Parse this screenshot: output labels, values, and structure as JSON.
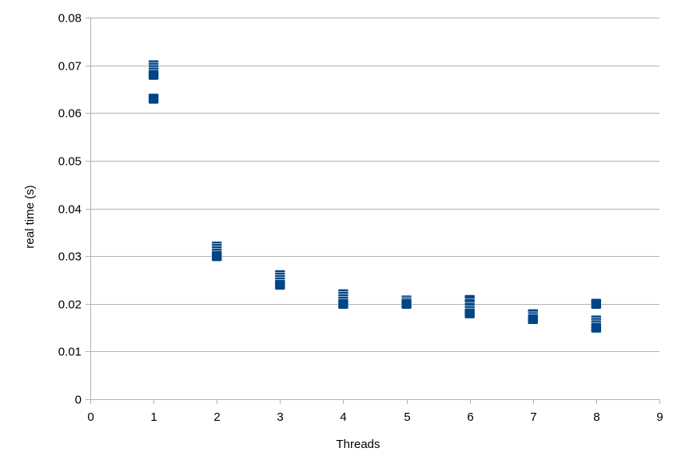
{
  "chart_data": {
    "type": "scatter",
    "title": "",
    "xlabel": "Threads",
    "ylabel": "real time (s)",
    "xlim": [
      0,
      9
    ],
    "ylim": [
      0,
      0.08
    ],
    "xticks": [
      0,
      1,
      2,
      3,
      4,
      5,
      6,
      7,
      8,
      9
    ],
    "yticks": [
      0,
      0.01,
      0.02,
      0.03,
      0.04,
      0.05,
      0.06,
      0.07,
      0.08
    ],
    "ytick_labels": [
      "0",
      "0.01",
      "0.02",
      "0.03",
      "0.04",
      "0.05",
      "0.06",
      "0.07",
      "0.08"
    ],
    "xtick_labels": [
      "0",
      "1",
      "2",
      "3",
      "4",
      "5",
      "6",
      "7",
      "8",
      "9"
    ],
    "grid": "horizontal",
    "legend": "none",
    "marker": "square",
    "color": "#004586",
    "series": [
      {
        "name": "real time",
        "points": [
          {
            "x": 1,
            "y": 0.07
          },
          {
            "x": 1,
            "y": 0.0695
          },
          {
            "x": 1,
            "y": 0.069
          },
          {
            "x": 1,
            "y": 0.0685
          },
          {
            "x": 1,
            "y": 0.068
          },
          {
            "x": 1,
            "y": 0.063
          },
          {
            "x": 2,
            "y": 0.032
          },
          {
            "x": 2,
            "y": 0.0315
          },
          {
            "x": 2,
            "y": 0.031
          },
          {
            "x": 2,
            "y": 0.0305
          },
          {
            "x": 2,
            "y": 0.03
          },
          {
            "x": 3,
            "y": 0.026
          },
          {
            "x": 3,
            "y": 0.0255
          },
          {
            "x": 3,
            "y": 0.025
          },
          {
            "x": 3,
            "y": 0.0245
          },
          {
            "x": 3,
            "y": 0.024
          },
          {
            "x": 4,
            "y": 0.022
          },
          {
            "x": 4,
            "y": 0.0215
          },
          {
            "x": 4,
            "y": 0.021
          },
          {
            "x": 4,
            "y": 0.0205
          },
          {
            "x": 4,
            "y": 0.02
          },
          {
            "x": 5,
            "y": 0.0207
          },
          {
            "x": 5,
            "y": 0.0203
          },
          {
            "x": 5,
            "y": 0.02
          },
          {
            "x": 6,
            "y": 0.0208
          },
          {
            "x": 6,
            "y": 0.02
          },
          {
            "x": 6,
            "y": 0.0192
          },
          {
            "x": 6,
            "y": 0.0185
          },
          {
            "x": 6,
            "y": 0.018
          },
          {
            "x": 7,
            "y": 0.0178
          },
          {
            "x": 7,
            "y": 0.0172
          },
          {
            "x": 7,
            "y": 0.0168
          },
          {
            "x": 8,
            "y": 0.02
          },
          {
            "x": 8,
            "y": 0.0165
          },
          {
            "x": 8,
            "y": 0.016
          },
          {
            "x": 8,
            "y": 0.0155
          },
          {
            "x": 8,
            "y": 0.015
          }
        ]
      }
    ]
  }
}
